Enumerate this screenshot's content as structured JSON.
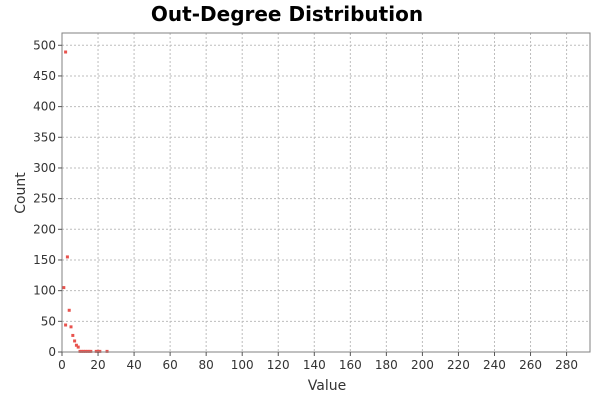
{
  "chart_data": {
    "type": "scatter",
    "title": "Out-Degree Distribution",
    "xlabel": "Value",
    "ylabel": "Count",
    "xlim": [
      0,
      293
    ],
    "ylim": [
      0,
      520
    ],
    "x_ticks": [
      0,
      20,
      40,
      60,
      80,
      100,
      120,
      140,
      160,
      180,
      200,
      220,
      240,
      260,
      280
    ],
    "y_ticks": [
      0,
      50,
      100,
      150,
      200,
      250,
      300,
      350,
      400,
      450,
      500
    ],
    "grid": true,
    "legend": "none",
    "colors": {
      "points": "#e8534e",
      "grid": "#bdbdbd",
      "frame": "#808080"
    },
    "series": [
      {
        "points": [
          {
            "x": 1,
            "y": 105
          },
          {
            "x": 2,
            "y": 489
          },
          {
            "x": 2,
            "y": 44
          },
          {
            "x": 3,
            "y": 155
          },
          {
            "x": 4,
            "y": 68
          },
          {
            "x": 5,
            "y": 41
          },
          {
            "x": 6,
            "y": 27
          },
          {
            "x": 7,
            "y": 18
          },
          {
            "x": 8,
            "y": 11
          },
          {
            "x": 9,
            "y": 8
          },
          {
            "x": 10,
            "y": 1
          },
          {
            "x": 11,
            "y": 1
          },
          {
            "x": 12,
            "y": 1
          },
          {
            "x": 13,
            "y": 1
          },
          {
            "x": 14,
            "y": 1
          },
          {
            "x": 15,
            "y": 1
          },
          {
            "x": 16,
            "y": 1
          },
          {
            "x": 19,
            "y": 1
          },
          {
            "x": 20,
            "y": 1
          },
          {
            "x": 21,
            "y": 1
          },
          {
            "x": 25,
            "y": 1
          }
        ]
      }
    ]
  }
}
